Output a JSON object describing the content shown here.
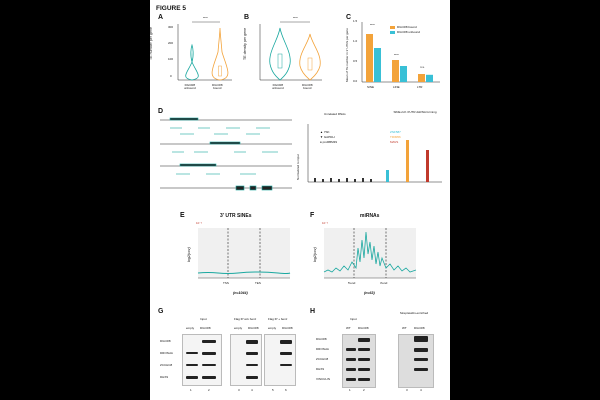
{
  "figure_title": "FIGURE 5",
  "panel_labels": {
    "A": "A",
    "B": "B",
    "C": "C",
    "D": "D",
    "E": "E",
    "F": "F",
    "G": "G",
    "H": "H"
  },
  "colors": {
    "teal": "#1aa8a0",
    "orange": "#f3a33a",
    "cyan": "#39c0d6",
    "red": "#c0392b",
    "grey": "#888888"
  },
  "panelA": {
    "ylabel": "TE number per gene",
    "yticks": [
      "0",
      "100",
      "200",
      "300"
    ],
    "sig": "****",
    "x_labels": [
      [
        "DGCR8",
        "unbound"
      ],
      [
        "DGCR8",
        "bound"
      ]
    ]
  },
  "panelB": {
    "ylabel": "TE density per gene",
    "sig": "****",
    "x_labels": [
      [
        "DGCR8",
        "unbound"
      ],
      [
        "DGCR8",
        "bound"
      ]
    ]
  },
  "panelC": {
    "ylabel": "Mean of TE number in 3' UTRs per gene",
    "legend": [
      "DGCR8 bound",
      "DGCR8 unbound"
    ],
    "sig": [
      "****",
      "****",
      "n.s."
    ]
  },
  "panelD": {
    "group1": "Unrelated RNAs",
    "group2": "SINE-rich 3'UTR dsRNA forming",
    "legend1": [
      "7SK",
      "GAPDH",
      "proRBM39"
    ],
    "legend2": [
      "ZNF587",
      "TRIM56",
      "MAVS"
    ],
    "ylabel": "Normalized to input"
  },
  "panelE": {
    "title": "3' UTR SINEs",
    "ylabel": "log2(cov)",
    "scale": "10⁻³",
    "x_ticks": [
      "TSS",
      "TES"
    ],
    "n": "(n=1044)"
  },
  "panelF": {
    "title": "miRNAs",
    "ylabel": "log2(cov)",
    "scale": "10⁻³",
    "x_ticks": [
      "5'end",
      "3'end"
    ],
    "n": "(n=63)"
  },
  "panelG": {
    "input_label": "Input",
    "flag_wo": "Flag IP w/o benz",
    "flag_w": "Flag IP + benz",
    "lane_heads": [
      "empty",
      "DGCR8",
      "empty",
      "DGCR8",
      "empty",
      "DGCR8"
    ],
    "rows": [
      "DGCR8",
      "DROSHA",
      "ZCCHC8",
      "DHX9"
    ],
    "lane_nums": [
      "1",
      "2",
      "3",
      "4",
      "5",
      "6"
    ]
  },
  "panelH": {
    "input_label": "Input",
    "strep_label": "Streptavidin-enriched",
    "lane_heads": [
      "WT",
      "DGCR8",
      "WT",
      "DGCR8"
    ],
    "rows": [
      "DGCR8",
      "DROSHA",
      "ZCCHC8",
      "DHX9",
      "VINCULIN"
    ],
    "lane_nums": [
      "1",
      "2",
      "3",
      "4"
    ]
  },
  "chart_data": [
    {
      "type": "violin",
      "panel": "A",
      "title": "",
      "ylabel": "TE number per gene",
      "categories": [
        "DGCR8 unbound",
        "DGCR8 bound"
      ],
      "ylim": [
        0,
        300
      ]
    },
    {
      "type": "violin",
      "panel": "B",
      "title": "",
      "ylabel": "TE density per gene",
      "categories": [
        "DGCR8 unbound",
        "DGCR8 bound"
      ]
    },
    {
      "type": "bar",
      "panel": "C",
      "categories": [
        "SINE",
        "LINE",
        "LTR"
      ],
      "series": [
        {
          "name": "DGCR8 bound",
          "values": [
            1.2,
            0.55,
            0.2
          ]
        },
        {
          "name": "DGCR8 unbound",
          "values": [
            0.85,
            0.4,
            0.18
          ]
        }
      ],
      "ylim": [
        0,
        1.5
      ],
      "yticks": [
        "0.0",
        "0.5",
        "1.0",
        "1.5"
      ]
    },
    {
      "type": "line",
      "panel": "E",
      "title": "3' UTR SINEs",
      "x_ticks": [
        "TSS",
        "TES"
      ]
    },
    {
      "type": "line",
      "panel": "F",
      "title": "miRNAs",
      "x_ticks": [
        "5'end",
        "3'end"
      ]
    }
  ]
}
